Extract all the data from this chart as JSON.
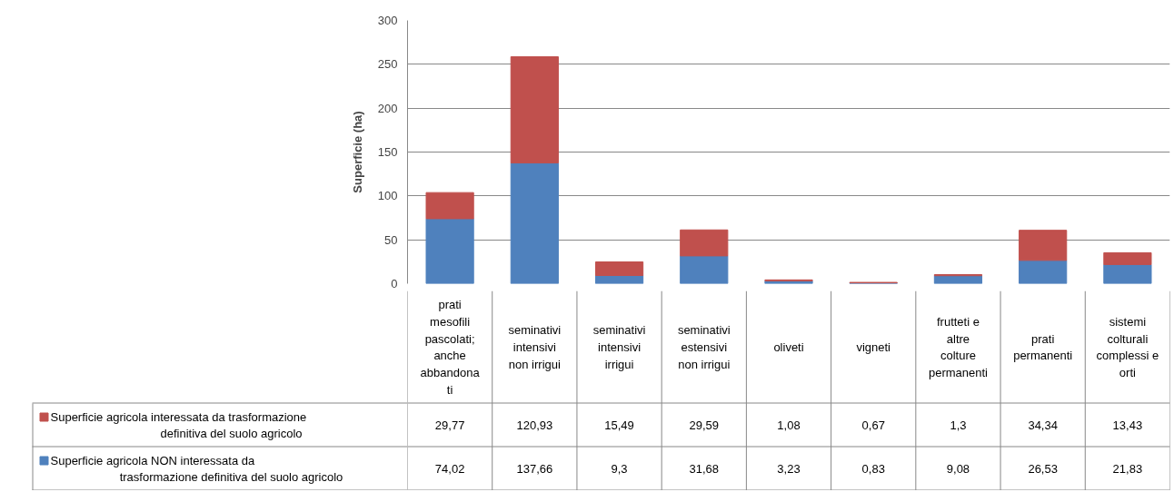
{
  "chart_data": {
    "type": "bar",
    "stacked": true,
    "ylabel": "Superficie (ha)",
    "categories": [
      "prati mesofili pascolati; anche abbandonati",
      "seminativi intensivi non irrigui",
      "seminativi intensivi irrigui",
      "seminativi estensivi non irrigui",
      "oliveti",
      "vigneti",
      "frutteti e altre colture permanenti",
      "prati permanenti",
      "sistemi colturali complessi e orti"
    ],
    "series": [
      {
        "name": "Superficie agricola NON interessata da trasformazione definitiva del suolo agricolo",
        "color": "#4f81bd",
        "values": [
          74.02,
          137.66,
          9.3,
          31.68,
          3.23,
          0.83,
          9.08,
          26.53,
          21.83
        ],
        "value_labels": [
          "74,02",
          "137,66",
          "9,3",
          "31,68",
          "3,23",
          "0,83",
          "9,08",
          "26,53",
          "21,83"
        ]
      },
      {
        "name": "Superficie agricola interessata da trasformazione definitiva del suolo agricolo",
        "color": "#c0504d",
        "values": [
          29.77,
          120.93,
          15.49,
          29.59,
          1.08,
          0.67,
          1.3,
          34.34,
          13.43
        ],
        "value_labels": [
          "29,77",
          "120,93",
          "15,49",
          "29,59",
          "1,08",
          "0,67",
          "1,3",
          "34,34",
          "13,43"
        ]
      }
    ],
    "ylim": [
      0,
      300
    ],
    "yticks": [
      0,
      50,
      100,
      150,
      200,
      250,
      300
    ],
    "grid": "y",
    "legend": "bottom"
  }
}
